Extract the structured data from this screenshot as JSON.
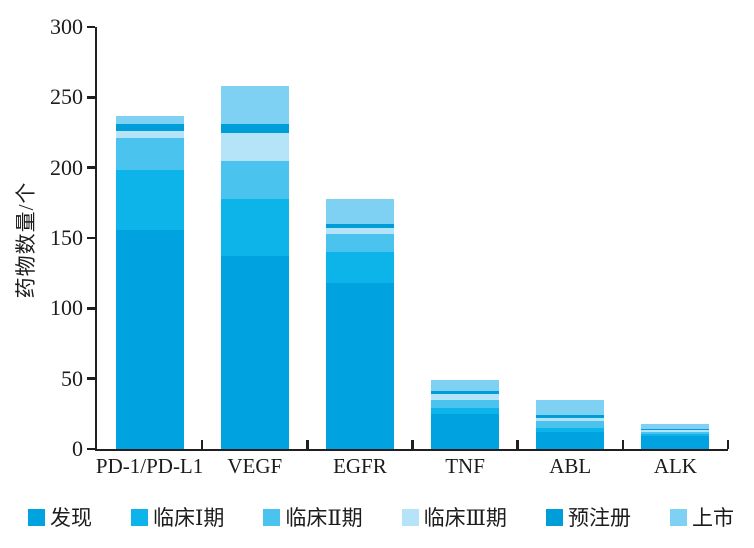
{
  "chart_data": {
    "type": "bar",
    "stacked": true,
    "title": "",
    "xlabel": "",
    "ylabel": "药物数量/个",
    "ylim": [
      0,
      300
    ],
    "yticks": [
      0,
      50,
      100,
      150,
      200,
      250,
      300
    ],
    "grid": false,
    "legend_position": "bottom",
    "categories": [
      "PD-1/PD-L1",
      "VEGF",
      "EGFR",
      "TNF",
      "ABL",
      "ALK"
    ],
    "series": [
      {
        "name": "发现",
        "color": "#00a3e0",
        "values": [
          156,
          137,
          118,
          25,
          12,
          9
        ]
      },
      {
        "name": "临床Ⅰ期",
        "color": "#0cb4ea",
        "values": [
          42,
          41,
          22,
          4,
          3,
          2
        ]
      },
      {
        "name": "临床Ⅱ期",
        "color": "#4ac4ef",
        "values": [
          23,
          27,
          13,
          6,
          5,
          1
        ]
      },
      {
        "name": "临床Ⅲ期",
        "color": "#b5e3f8",
        "values": [
          5,
          20,
          4,
          4,
          2,
          1.5
        ]
      },
      {
        "name": "预注册",
        "color": "#009ed8",
        "values": [
          5,
          6,
          3,
          2,
          2,
          0.5
        ]
      },
      {
        "name": "上市",
        "color": "#7ed1f3",
        "values": [
          6,
          27,
          18,
          8,
          11,
          4
        ]
      }
    ],
    "totals": [
      237,
      258,
      178,
      49,
      35,
      18
    ],
    "axis_color": "#231f20",
    "text_color": "#1c1c1c"
  }
}
